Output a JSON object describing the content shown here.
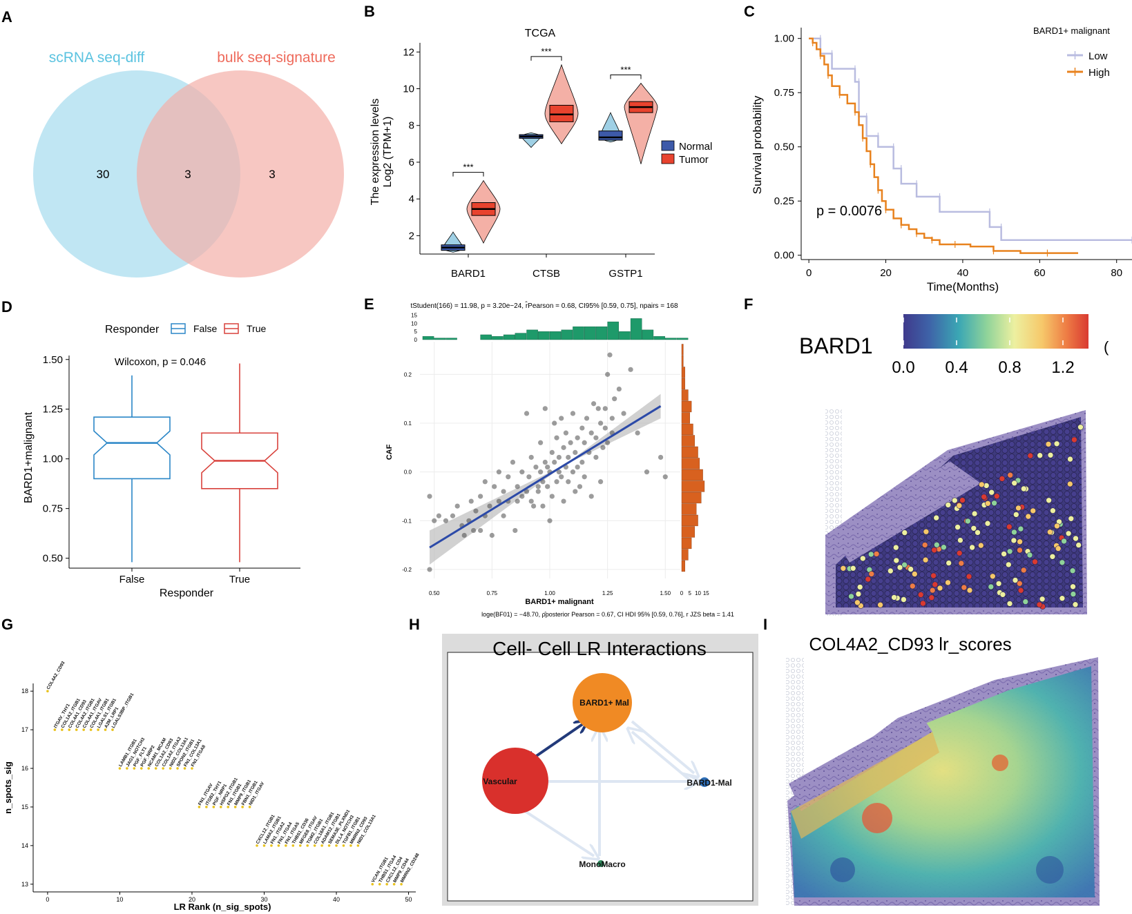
{
  "panel_labels": [
    "A",
    "B",
    "C",
    "D",
    "E",
    "F",
    "G",
    "H",
    "I"
  ],
  "panelA": {
    "set1_label": "scRNA seq-diff",
    "set2_label": "bulk seq-signature",
    "only1": "30",
    "both": "3",
    "only2": "3",
    "colors": {
      "set1": "#9ED9EC",
      "set2": "#F3AFA8",
      "label1": "#5BC3E0",
      "label2": "#EE6A5B"
    }
  },
  "chart_data": [
    {
      "panel": "B",
      "type": "violin-box",
      "title": "TCGA",
      "ylabel_line1": "The expression levels",
      "ylabel_line2": "Log2 (TPM+1)",
      "ylim": [
        1,
        12.5
      ],
      "yticks": [
        2,
        4,
        6,
        8,
        10,
        12
      ],
      "categories": [
        "BARD1",
        "CTSB",
        "GSTP1"
      ],
      "legend": [
        {
          "name": "Normal",
          "color": "#3D5AA9"
        },
        {
          "name": "Tumor",
          "color": "#E8432E"
        }
      ],
      "series": [
        {
          "name": "Normal",
          "boxes": [
            {
              "q1": 1.2,
              "median": 1.35,
              "q3": 1.5,
              "min": 1.1,
              "max": 2.2
            },
            {
              "q1": 7.3,
              "median": 7.4,
              "q3": 7.5,
              "min": 6.8,
              "max": 7.6
            },
            {
              "q1": 7.2,
              "median": 7.35,
              "q3": 7.7,
              "min": 7.1,
              "max": 8.7
            }
          ]
        },
        {
          "name": "Tumor",
          "boxes": [
            {
              "q1": 3.1,
              "median": 3.45,
              "q3": 3.8,
              "min": 1.6,
              "max": 5.0
            },
            {
              "q1": 8.2,
              "median": 8.6,
              "q3": 9.1,
              "min": 7.0,
              "max": 11.3
            },
            {
              "q1": 8.7,
              "median": 9.0,
              "q3": 9.3,
              "min": 5.9,
              "max": 10.3
            }
          ]
        }
      ],
      "significance": [
        "***",
        "***",
        "***"
      ]
    },
    {
      "panel": "C",
      "type": "survival",
      "ylabel": "Survival probability",
      "xlabel": "Time(Months)",
      "xlim": [
        -2,
        84
      ],
      "ylim": [
        -0.02,
        1.05
      ],
      "xticks": [
        0,
        20,
        40,
        60,
        80
      ],
      "yticks": [
        "0.00",
        "0.25",
        "0.50",
        "0.75",
        "1.00"
      ],
      "legend_title": "BARD1+ malignant",
      "pvalue": "p = 0.0076",
      "series": [
        {
          "name": "Low",
          "color": "#B9BCE0",
          "x": [
            0,
            3,
            3,
            6,
            6,
            12,
            12,
            13,
            13,
            15,
            15,
            18,
            18,
            22,
            22,
            24,
            24,
            28,
            28,
            34,
            34,
            47,
            47,
            50,
            50,
            84
          ],
          "y": [
            1.0,
            1.0,
            0.93,
            0.93,
            0.86,
            0.86,
            0.8,
            0.8,
            0.64,
            0.64,
            0.55,
            0.55,
            0.5,
            0.5,
            0.4,
            0.4,
            0.33,
            0.33,
            0.27,
            0.27,
            0.2,
            0.2,
            0.13,
            0.13,
            0.07,
            0.07
          ]
        },
        {
          "name": "High",
          "color": "#E8821E",
          "x": [
            0,
            1,
            2,
            3,
            4,
            5,
            6,
            8,
            10,
            12,
            13,
            14,
            15,
            16,
            17,
            18,
            19,
            20,
            22,
            24,
            26,
            28,
            30,
            32,
            34,
            38,
            42,
            48,
            55,
            62,
            70
          ],
          "y": [
            1.0,
            0.98,
            0.95,
            0.92,
            0.88,
            0.83,
            0.78,
            0.74,
            0.7,
            0.66,
            0.6,
            0.54,
            0.48,
            0.42,
            0.36,
            0.3,
            0.25,
            0.21,
            0.17,
            0.14,
            0.12,
            0.1,
            0.08,
            0.07,
            0.05,
            0.05,
            0.04,
            0.02,
            0.01,
            0.01,
            0.01
          ]
        }
      ]
    },
    {
      "panel": "D",
      "type": "notched-box",
      "legend_title": "Responder",
      "legend": [
        {
          "name": "False",
          "color": "#2A86C7"
        },
        {
          "name": "True",
          "color": "#D8413B"
        }
      ],
      "ylabel": "BARD1+malignant",
      "xlabel": "Responder",
      "annotation": "Wilcoxon, p = 0.046",
      "ylim": [
        0.45,
        1.52
      ],
      "yticks": [
        "0.50",
        "0.75",
        "1.00",
        "1.25",
        "1.50"
      ],
      "categories": [
        "False",
        "True"
      ],
      "boxes": [
        {
          "min": 0.48,
          "q1": 0.9,
          "median": 1.08,
          "q3": 1.21,
          "max": 1.42
        },
        {
          "min": 0.48,
          "q1": 0.85,
          "median": 0.99,
          "q3": 1.13,
          "max": 1.48
        }
      ]
    },
    {
      "panel": "E",
      "type": "scatter",
      "stats_top": "tStudent(166) = 11.98, p = 3.20e−24, r̂Pearson = 0.68, CI95% [0.59, 0.75], npairs = 168",
      "stats_bottom": "loge(BF01) = −48.70, ρ̂posterior Pearson = 0.67, CI HDI 95% [0.59, 0.76], r JZS beta = 1.41",
      "xlabel": "BARD1+ malignant",
      "ylabel": "CAF",
      "xlim": [
        0.45,
        1.55
      ],
      "ylim": [
        -0.21,
        0.26
      ],
      "xticks": [
        "0.50",
        "0.75",
        "1.00",
        "1.25",
        "1.50"
      ],
      "yticks": [
        "-0.2",
        "-0.1",
        "0.0",
        "0.1",
        "0.2"
      ],
      "hist_ticks_top": [
        "15",
        "10",
        "5",
        "0"
      ],
      "hist_ticks_right": [
        "0",
        "5",
        "10",
        "15"
      ],
      "fit": {
        "x0": 0.48,
        "y0": -0.155,
        "x1": 1.48,
        "y1": 0.135
      },
      "points": [
        [
          0.48,
          -0.2
        ],
        [
          0.48,
          -0.05
        ],
        [
          0.5,
          -0.1
        ],
        [
          0.52,
          -0.09
        ],
        [
          0.55,
          -0.1
        ],
        [
          0.58,
          -0.09
        ],
        [
          0.6,
          -0.07
        ],
        [
          0.62,
          -0.11
        ],
        [
          0.63,
          -0.13
        ],
        [
          0.65,
          -0.1
        ],
        [
          0.66,
          -0.06
        ],
        [
          0.67,
          -0.12
        ],
        [
          0.68,
          -0.08
        ],
        [
          0.7,
          -0.05
        ],
        [
          0.7,
          -0.12
        ],
        [
          0.72,
          -0.02
        ],
        [
          0.72,
          -0.09
        ],
        [
          0.74,
          -0.07
        ],
        [
          0.75,
          -0.13
        ],
        [
          0.76,
          -0.03
        ],
        [
          0.78,
          -0.06
        ],
        [
          0.78,
          0.0
        ],
        [
          0.8,
          -0.09
        ],
        [
          0.8,
          -0.04
        ],
        [
          0.82,
          -0.01
        ],
        [
          0.82,
          -0.06
        ],
        [
          0.84,
          0.02
        ],
        [
          0.85,
          -0.12
        ],
        [
          0.86,
          -0.06
        ],
        [
          0.86,
          -0.03
        ],
        [
          0.88,
          -0.05
        ],
        [
          0.88,
          0.0
        ],
        [
          0.9,
          -0.04
        ],
        [
          0.9,
          0.12
        ],
        [
          0.91,
          -0.01
        ],
        [
          0.92,
          0.03
        ],
        [
          0.92,
          -0.06
        ],
        [
          0.93,
          -0.07
        ],
        [
          0.94,
          0.01
        ],
        [
          0.95,
          -0.03
        ],
        [
          0.95,
          -0.04
        ],
        [
          0.96,
          0.06
        ],
        [
          0.96,
          0.0
        ],
        [
          0.97,
          -0.02
        ],
        [
          0.97,
          -0.07
        ],
        [
          0.98,
          0.02
        ],
        [
          0.98,
          0.13
        ],
        [
          0.99,
          -0.03
        ],
        [
          0.99,
          0.01
        ],
        [
          1.0,
          0.0
        ],
        [
          1.0,
          -0.1
        ],
        [
          1.01,
          0.04
        ],
        [
          1.01,
          -0.05
        ],
        [
          1.02,
          0.02
        ],
        [
          1.02,
          0.1
        ],
        [
          1.03,
          -0.02
        ],
        [
          1.03,
          0.07
        ],
        [
          1.04,
          0.0
        ],
        [
          1.04,
          0.03
        ],
        [
          1.05,
          -0.01
        ],
        [
          1.05,
          0.11
        ],
        [
          1.06,
          0.05
        ],
        [
          1.06,
          -0.06
        ],
        [
          1.07,
          0.01
        ],
        [
          1.07,
          0.08
        ],
        [
          1.08,
          -0.02
        ],
        [
          1.08,
          0.03
        ],
        [
          1.09,
          0.06
        ],
        [
          1.1,
          0.0
        ],
        [
          1.1,
          0.12
        ],
        [
          1.11,
          -0.04
        ],
        [
          1.11,
          0.04
        ],
        [
          1.12,
          0.07
        ],
        [
          1.12,
          0.01
        ],
        [
          1.13,
          -0.03
        ],
        [
          1.14,
          0.09
        ],
        [
          1.14,
          0.02
        ],
        [
          1.15,
          0.06
        ],
        [
          1.15,
          -0.01
        ],
        [
          1.16,
          0.11
        ],
        [
          1.17,
          0.04
        ],
        [
          1.18,
          0.08
        ],
        [
          1.18,
          -0.05
        ],
        [
          1.19,
          0.14
        ],
        [
          1.2,
          0.03
        ],
        [
          1.2,
          0.07
        ],
        [
          1.21,
          0.13
        ],
        [
          1.22,
          0.1
        ],
        [
          1.22,
          -0.02
        ],
        [
          1.23,
          0.05
        ],
        [
          1.24,
          0.09
        ],
        [
          1.24,
          0.13
        ],
        [
          1.25,
          0.2
        ],
        [
          1.25,
          0.06
        ],
        [
          1.26,
          0.24
        ],
        [
          1.27,
          0.08
        ],
        [
          1.27,
          0.11
        ],
        [
          1.28,
          0.15
        ],
        [
          1.3,
          0.17
        ],
        [
          1.32,
          0.12
        ],
        [
          1.35,
          0.21
        ],
        [
          1.38,
          0.08
        ],
        [
          1.42,
          0.0
        ],
        [
          1.48,
          0.03
        ],
        [
          1.5,
          -0.01
        ]
      ]
    },
    {
      "panel": "G",
      "type": "rank-scatter",
      "xlabel": "LR Rank (n_sig_spots)",
      "ylabel": "n_spots_sig",
      "xlim": [
        -2,
        51
      ],
      "ylim": [
        12.8,
        18.2
      ],
      "xticks": [
        0,
        10,
        20,
        30,
        40,
        50
      ],
      "yticks": [
        13,
        14,
        15,
        16,
        17,
        18
      ],
      "levels": [
        {
          "y": 18,
          "start": 0,
          "labels": [
            "COL4A2_CD93"
          ]
        },
        {
          "y": 17,
          "start": 1,
          "labels": [
            "ITGAV_THY1",
            "COL1A2_ITGB1",
            "COL4A1_CD93",
            "COL4A2_ITGB1",
            "COL4A1_ITGAV",
            "COL4A1_ITGB1",
            "LGALS1_ITGB1",
            "A2M_LRP1",
            "LGALS3BP_ITGB1"
          ]
        },
        {
          "y": 16,
          "start": 10,
          "labels": [
            "LAMB1_ITGB1",
            "JAG1_NOTCH3",
            "PGF_FLT1",
            "PGF_NRP2",
            "NCAM1_MCAM",
            "COL1A2_CD93",
            "COL1A2_ITGA2",
            "NID2_COL13A1",
            "SPON2_ITGB1",
            "FN1_COL13A1",
            "FN1_ITGA8"
          ]
        },
        {
          "y": 15,
          "start": 21,
          "labels": [
            "FN1_ITGAV",
            "ITGB2_THY1",
            "PGF_NRP1",
            "HSPG2_ITGB1",
            "FN1_ITGB1",
            "MMP9_ITGB1",
            "FBN1_ITGB1",
            "NID1_ITGAV"
          ]
        },
        {
          "y": 14,
          "start": 29,
          "labels": [
            "CXCL12_ITGB1",
            "LAMA2_ITGB1",
            "FN1_ITGA2",
            "FN1_ITGA4",
            "FN1_ITGA5",
            "THBS1_CD36",
            "MFGE8_ITGAV",
            "TGM2_ITGB1",
            "COL18A1_ITGB1",
            "ADAM12_ITGB1",
            "SEMA3E_PLXND1",
            "DLL4_NOTCH3",
            "TGFB1_ITGB1",
            "MMRN2_CD93",
            "NID1_COL13A1"
          ]
        },
        {
          "y": 13,
          "start": 45,
          "labels": [
            "VCAN_ITGB1",
            "THBS1_ITGA4",
            "CXCL12_CD4",
            "MMP9_CD44",
            "MMRN2_CD248"
          ]
        }
      ]
    }
  ],
  "panelF": {
    "title": "BARD1",
    "colorbar_ticks": [
      "0.0",
      "0.4",
      "0.8",
      "1.2"
    ],
    "colors": [
      "#3F3A8C",
      "#3E63A8",
      "#3BA7B4",
      "#8FD39A",
      "#EDF0A0",
      "#F6C86A",
      "#EE7D45",
      "#D93A31"
    ]
  },
  "panelH": {
    "title": "Cell- Cell  LR  Interactions",
    "nodes": [
      {
        "name": "BARD1+ Mal",
        "color": "#F08A24"
      },
      {
        "name": "Vascular",
        "color": "#D9302C"
      },
      {
        "name": "BARD1-Mal",
        "color": "#2F6FB8"
      },
      {
        "name": "MonoMacro",
        "color": "#2C8A5C"
      }
    ],
    "edge_color": "#223A7A"
  },
  "panelI": {
    "title": "COL4A2_CD93 lr_scores"
  }
}
